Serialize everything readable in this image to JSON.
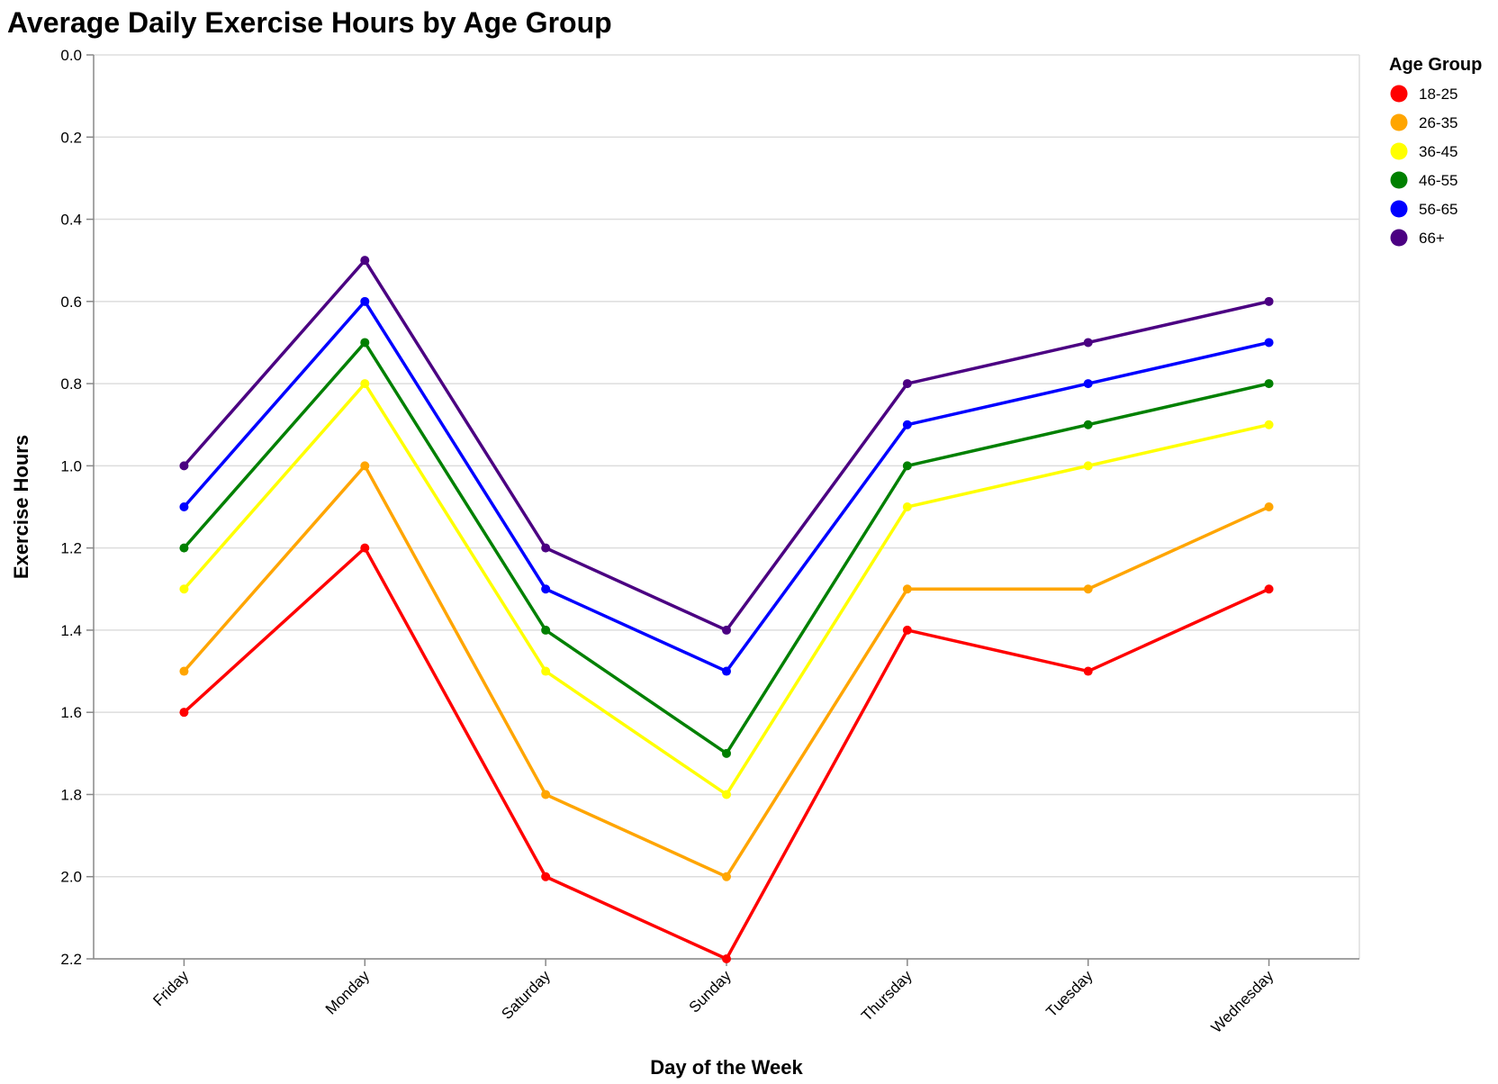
{
  "chart_data": {
    "type": "line",
    "title": "Average Daily Exercise Hours by Age Group",
    "xlabel": "Day of the Week",
    "ylabel": "Exercise Hours",
    "categories": [
      "Friday",
      "Monday",
      "Saturday",
      "Sunday",
      "Thursday",
      "Tuesday",
      "Wednesday"
    ],
    "ylim": [
      0,
      2.2
    ],
    "y_reversed": true,
    "y_ticks": [
      "0.0",
      "0.2",
      "0.4",
      "0.6",
      "0.8",
      "1.0",
      "1.2",
      "1.4",
      "1.6",
      "1.8",
      "2.0",
      "2.2"
    ],
    "grid": true,
    "legend_title": "Age Group",
    "legend_position": "top-right",
    "series": [
      {
        "name": "18-25",
        "color": "#ff0000",
        "values": [
          1.6,
          1.2,
          2.0,
          2.2,
          1.4,
          1.5,
          1.3
        ]
      },
      {
        "name": "26-35",
        "color": "#ffa500",
        "values": [
          1.5,
          1.0,
          1.8,
          2.0,
          1.3,
          1.3,
          1.1
        ]
      },
      {
        "name": "36-45",
        "color": "#ffff00",
        "values": [
          1.3,
          0.8,
          1.5,
          1.8,
          1.1,
          1.0,
          0.9
        ]
      },
      {
        "name": "46-55",
        "color": "#008000",
        "values": [
          1.2,
          0.7,
          1.4,
          1.7,
          1.0,
          0.9,
          0.8
        ]
      },
      {
        "name": "56-65",
        "color": "#0000ff",
        "values": [
          1.1,
          0.6,
          1.3,
          1.5,
          0.9,
          0.8,
          0.7
        ]
      },
      {
        "name": "66+",
        "color": "#4b0082",
        "values": [
          1.0,
          0.5,
          1.2,
          1.4,
          0.8,
          0.7,
          0.6
        ]
      }
    ]
  }
}
